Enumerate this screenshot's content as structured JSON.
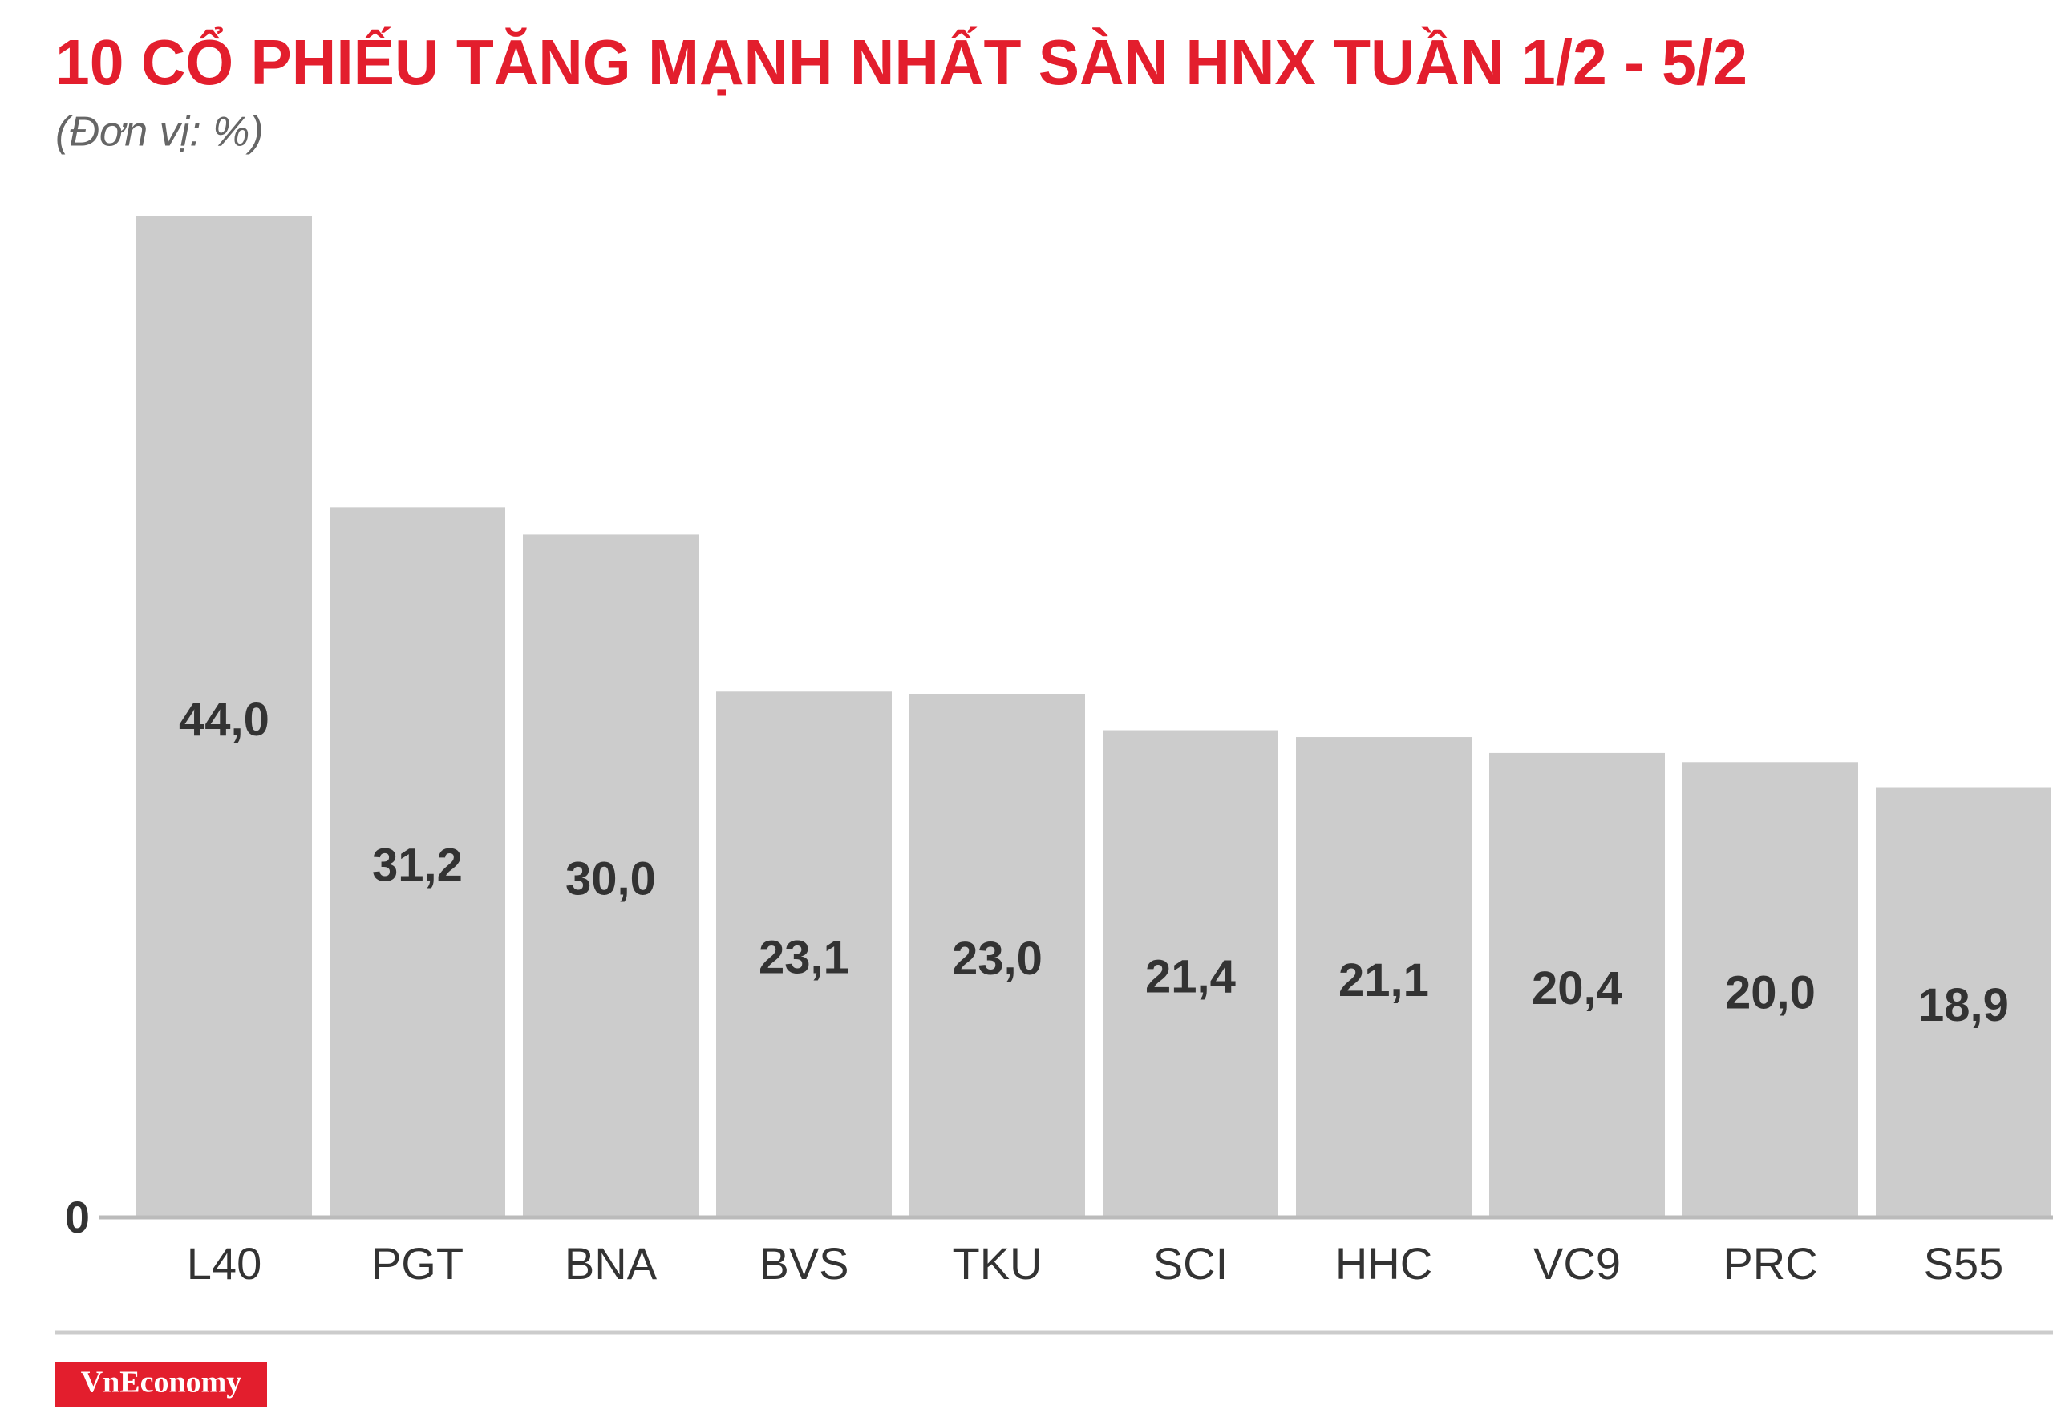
{
  "chart_data": {
    "type": "bar",
    "title": "10 CỔ PHIẾU TĂNG MẠNH NHẤT SÀN HNX TUẦN 1/2 - 5/2",
    "subtitle": "(Đơn vị: %)",
    "categories": [
      "L40",
      "PGT",
      "BNA",
      "BVS",
      "TKU",
      "SCI",
      "HHC",
      "VC9",
      "PRC",
      "S55"
    ],
    "values": [
      44.0,
      31.2,
      30.0,
      23.1,
      23.0,
      21.4,
      21.1,
      20.4,
      20.0,
      18.9
    ],
    "value_labels": [
      "44,0",
      "31,2",
      "30,0",
      "23,1",
      "23,0",
      "21,4",
      "21,1",
      "20,4",
      "20,0",
      "18,9"
    ],
    "color": "#cccccc",
    "ylim": [
      0,
      44
    ],
    "yticks": [
      0
    ],
    "grid": false,
    "source": "VnEconomy"
  }
}
